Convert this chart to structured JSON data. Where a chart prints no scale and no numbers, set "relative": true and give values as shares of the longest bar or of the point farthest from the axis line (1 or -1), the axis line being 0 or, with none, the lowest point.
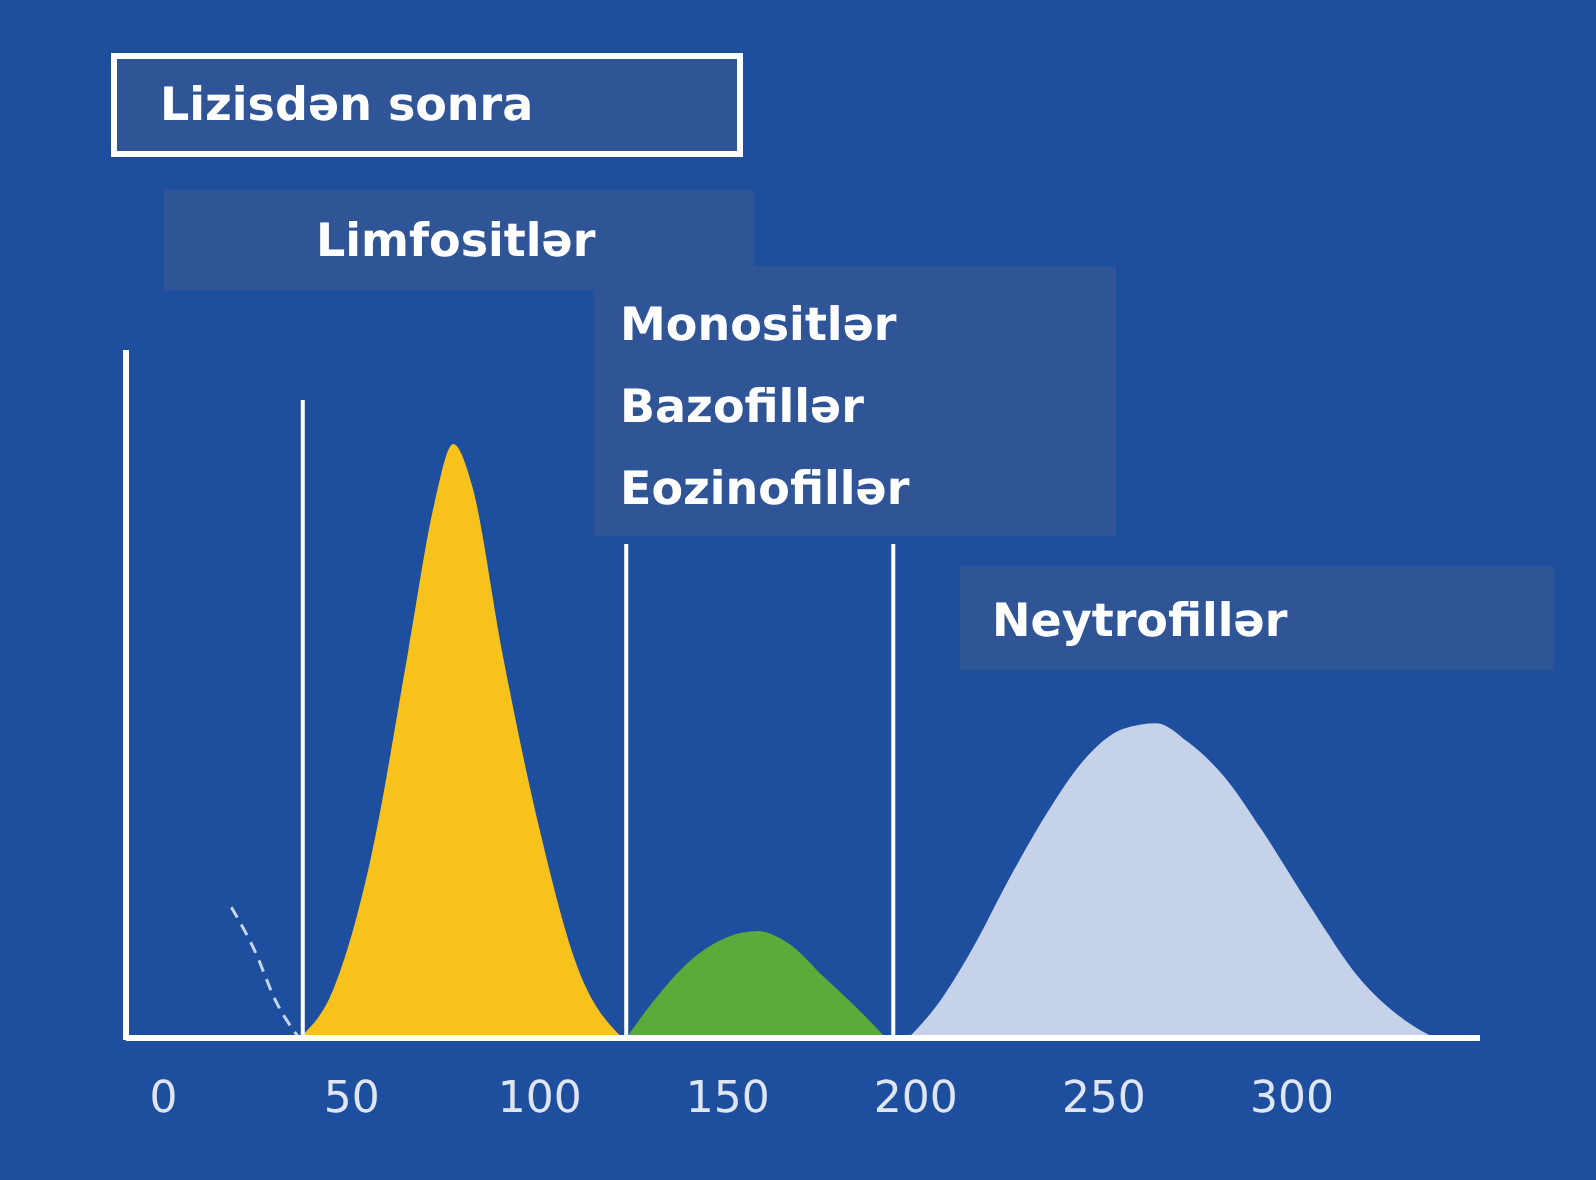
{
  "chart_data": {
    "type": "area",
    "title": "Lizisdən sonra",
    "relative": true,
    "xlim": [
      -10,
      350
    ],
    "xticks": [
      0,
      50,
      100,
      150,
      200,
      250,
      300
    ],
    "tick_labels": "x",
    "annotations": [
      "Limfositlər",
      "Monositlər\nBazofillər\nEozinofillər",
      "Neytrofillər"
    ],
    "ref_lines": [
      {
        "axis": "x",
        "value": 37,
        "color": "#ffffff"
      },
      {
        "axis": "x",
        "value": 123,
        "color": "#ffffff"
      },
      {
        "axis": "x",
        "value": 194,
        "color": "#ffffff"
      }
    ],
    "series": [
      {
        "type": "line",
        "line_style": "dashed",
        "color": "#c8d4e8",
        "x": [
          18,
          24,
          30,
          36
        ],
        "values": [
          0.22,
          0.15,
          0.06,
          0
        ]
      },
      {
        "color": "#f7c21b",
        "x": [
          36,
          45,
          55,
          65,
          72,
          77,
          82,
          90,
          100,
          110,
          122
        ],
        "values": [
          0,
          0.08,
          0.3,
          0.65,
          0.9,
          1,
          0.93,
          0.65,
          0.35,
          0.12,
          0
        ]
      },
      {
        "color": "#5aac3a",
        "x": [
          123,
          130,
          140,
          150,
          158,
          166,
          176,
          186,
          192
        ],
        "values": [
          0,
          0.06,
          0.13,
          0.17,
          0.18,
          0.16,
          0.1,
          0.04,
          0
        ]
      },
      {
        "color": "#c5d2ea",
        "x": [
          198,
          205,
          215,
          225,
          235,
          245,
          255,
          264,
          272,
          282,
          292,
          305,
          318,
          330,
          338
        ],
        "values": [
          0,
          0.05,
          0.15,
          0.27,
          0.38,
          0.47,
          0.52,
          0.53,
          0.5,
          0.44,
          0.35,
          0.22,
          0.1,
          0.03,
          0
        ]
      }
    ]
  }
}
